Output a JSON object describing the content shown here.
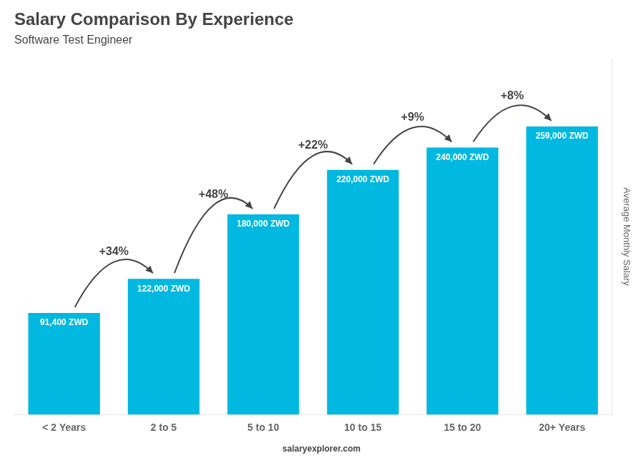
{
  "chart_data": {
    "type": "bar",
    "title": "Salary Comparison By Experience",
    "subtitle": "Software Test Engineer",
    "ylabel": "Average Monthly Salary",
    "categories": [
      "< 2 Years",
      "2 to 5",
      "5 to 10",
      "10 to 15",
      "15 to 20",
      "20+ Years"
    ],
    "values": [
      91400,
      122000,
      180000,
      220000,
      240000,
      259000
    ],
    "value_labels": [
      "91,400 ZWD",
      "122,000 ZWD",
      "180,000 ZWD",
      "220,000 ZWD",
      "240,000 ZWD",
      "259,000 ZWD"
    ],
    "data_labels": true,
    "color": "#00b8e0",
    "ylim": [
      0,
      320000
    ],
    "grid": false,
    "tick_labels": "x",
    "annotations": [
      {
        "text": "+34%",
        "from": "< 2 Years",
        "to": "2 to 5"
      },
      {
        "text": "+48%",
        "from": "2 to 5",
        "to": "5 to 10"
      },
      {
        "text": "+22%",
        "from": "5 to 10",
        "to": "10 to 15"
      },
      {
        "text": "+9%",
        "from": "10 to 15",
        "to": "15 to 20"
      },
      {
        "text": "+8%",
        "from": "15 to 20",
        "to": "20+ Years"
      },
      {
        "text": "salaryexplorer.com"
      }
    ]
  }
}
